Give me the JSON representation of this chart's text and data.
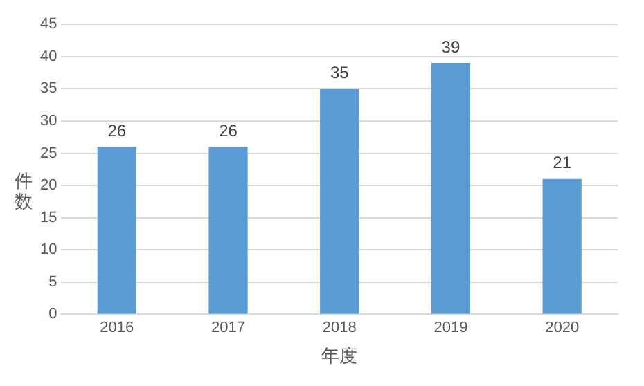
{
  "chart_data": {
    "type": "bar",
    "xlabel": "年度",
    "ylabel": "件数",
    "categories": [
      "2016",
      "2017",
      "2018",
      "2019",
      "2020"
    ],
    "values": [
      26,
      26,
      35,
      39,
      21
    ],
    "color": "#5b9bd5",
    "ylim": [
      0,
      45
    ],
    "yticks": [
      0,
      5,
      10,
      15,
      20,
      25,
      30,
      35,
      40,
      45
    ],
    "grid": "y",
    "data_labels": true
  }
}
